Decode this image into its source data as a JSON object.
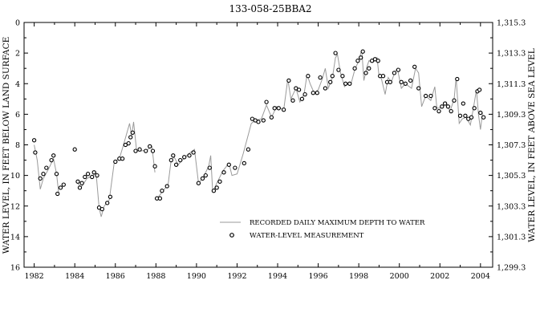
{
  "chart_data": {
    "type": "line",
    "title": "133-058-25BBA2",
    "ylabel": "WATER LEVEL, IN FEET BELOW LAND SURFACE",
    "y2label": "WATER LEVEL, IN FEET ABOVE SEA LEVEL",
    "xlim": [
      1981.5,
      2004.6
    ],
    "ylim": [
      0,
      16
    ],
    "y_inverted": true,
    "y2lim": [
      1315.3,
      1299.3
    ],
    "x_ticks": [
      "1982",
      "1984",
      "1986",
      "1988",
      "1990",
      "1992",
      "1994",
      "1996",
      "1998",
      "2000",
      "2002",
      "2004"
    ],
    "y_ticks": [
      "0",
      "2",
      "4",
      "6",
      "8",
      "10",
      "12",
      "14",
      "16"
    ],
    "y2_ticks": [
      "1,315.3",
      "1,313.3",
      "1,311.3",
      "1,309.3",
      "1,307.3",
      "1,305.3",
      "1,303.3",
      "1,301.3",
      "1,299.3"
    ],
    "grid": false,
    "legend_position": "bottom-center",
    "legend": [
      "RECORDED DAILY MAXIMUM DEPTH TO WATER",
      "WATER-LEVEL MEASUREMENT"
    ],
    "series": [
      {
        "name": "RECORDED DAILY MAXIMUM DEPTH TO WATER",
        "color": "#9a9a9a",
        "segments": [
          [
            [
              1982.0,
              8.0
            ],
            [
              1982.15,
              9.0
            ],
            [
              1982.3,
              10.9
            ],
            [
              1982.45,
              10.2
            ],
            [
              1982.7,
              9.6
            ],
            [
              1982.95,
              8.9
            ],
            [
              1983.1,
              9.9
            ],
            [
              1983.2,
              11.1
            ]
          ],
          [
            [
              1984.1,
              10.4
            ],
            [
              1984.3,
              10.8
            ],
            [
              1984.6,
              10.2
            ],
            [
              1984.9,
              10.0
            ],
            [
              1985.05,
              9.8
            ],
            [
              1985.2,
              12.1
            ],
            [
              1985.3,
              12.7
            ],
            [
              1985.45,
              12.0
            ],
            [
              1985.7,
              11.6
            ],
            [
              1985.95,
              9.1
            ],
            [
              1986.2,
              8.9
            ],
            [
              1986.4,
              8.0
            ],
            [
              1986.7,
              6.6
            ],
            [
              1986.8,
              7.4
            ],
            [
              1986.9,
              6.5
            ],
            [
              1987.05,
              8.4
            ],
            [
              1987.3,
              8.4
            ],
            [
              1987.6,
              8.3
            ],
            [
              1987.8,
              8.1
            ],
            [
              1987.95,
              9.8
            ]
          ],
          [
            [
              1988.0,
              11.6
            ],
            [
              1988.3,
              11.1
            ],
            [
              1988.6,
              10.6
            ],
            [
              1988.75,
              9.0
            ],
            [
              1988.9,
              8.8
            ],
            [
              1989.1,
              9.3
            ],
            [
              1989.3,
              9.0
            ],
            [
              1989.6,
              8.6
            ],
            [
              1989.9,
              8.3
            ],
            [
              1990.1,
              10.5
            ],
            [
              1990.3,
              10.2
            ],
            [
              1990.6,
              9.4
            ],
            [
              1990.7,
              8.7
            ],
            [
              1990.8,
              11.1
            ],
            [
              1991.0,
              10.5
            ],
            [
              1991.3,
              9.7
            ],
            [
              1991.6,
              9.2
            ],
            [
              1991.75,
              10.0
            ],
            [
              1992.0,
              9.9
            ],
            [
              1992.3,
              8.6
            ],
            [
              1992.5,
              7.6
            ],
            [
              1992.7,
              6.6
            ],
            [
              1992.9,
              6.4
            ],
            [
              1993.2,
              6.3
            ],
            [
              1993.45,
              5.4
            ],
            [
              1993.7,
              6.2
            ],
            [
              1993.95,
              5.5
            ],
            [
              1994.3,
              5.7
            ],
            [
              1994.5,
              3.7
            ],
            [
              1994.65,
              5.0
            ],
            [
              1994.9,
              4.3
            ],
            [
              1995.1,
              5.2
            ],
            [
              1995.3,
              4.7
            ],
            [
              1995.45,
              3.4
            ],
            [
              1995.6,
              4.0
            ],
            [
              1995.8,
              4.6
            ],
            [
              1996.0,
              4.4
            ],
            [
              1996.2,
              3.7
            ],
            [
              1996.35,
              3.0
            ],
            [
              1996.5,
              4.3
            ],
            [
              1996.7,
              3.6
            ],
            [
              1996.85,
              2.3
            ],
            [
              1996.95,
              2.1
            ],
            [
              1997.1,
              3.3
            ],
            [
              1997.3,
              4.2
            ],
            [
              1997.45,
              4.0
            ],
            [
              1997.6,
              4.1
            ],
            [
              1997.8,
              3.1
            ],
            [
              1997.9,
              2.8
            ],
            [
              1998.0,
              2.5
            ],
            [
              1998.1,
              2.0
            ],
            [
              1998.15,
              1.8
            ],
            [
              1998.25,
              3.8
            ],
            [
              1998.4,
              2.9
            ],
            [
              1998.5,
              2.5
            ],
            [
              1998.7,
              2.6
            ],
            [
              1998.9,
              2.3
            ],
            [
              1999.0,
              3.5
            ],
            [
              1999.1,
              3.6
            ],
            [
              1999.3,
              4.7
            ],
            [
              1999.45,
              3.6
            ],
            [
              1999.6,
              3.9
            ],
            [
              1999.8,
              3.2
            ],
            [
              1999.9,
              3.0
            ],
            [
              2000.1,
              4.3
            ],
            [
              2000.3,
              4.0
            ],
            [
              2000.5,
              4.2
            ],
            [
              2000.6,
              4.3
            ],
            [
              2000.8,
              3.0
            ],
            [
              2000.95,
              3.3
            ],
            [
              2001.1,
              5.5
            ],
            [
              2001.3,
              4.8
            ],
            [
              2001.55,
              5.1
            ],
            [
              2001.75,
              4.2
            ],
            [
              2001.85,
              5.6
            ],
            [
              2002.1,
              5.6
            ],
            [
              2002.3,
              5.2
            ],
            [
              2002.5,
              5.8
            ],
            [
              2002.7,
              5.0
            ],
            [
              2002.8,
              3.6
            ],
            [
              2002.95,
              6.6
            ],
            [
              2003.1,
              6.3
            ],
            [
              2003.3,
              6.2
            ],
            [
              2003.5,
              6.7
            ],
            [
              2003.65,
              5.6
            ],
            [
              2003.8,
              4.4
            ],
            [
              2003.9,
              6.0
            ],
            [
              2004.0,
              7.0
            ],
            [
              2004.1,
              5.9
            ]
          ]
        ]
      },
      {
        "name": "WATER-LEVEL MEASUREMENT",
        "points": [
          [
            1982.0,
            7.7
          ],
          [
            1982.05,
            8.5
          ],
          [
            1982.3,
            10.2
          ],
          [
            1982.45,
            9.9
          ],
          [
            1982.6,
            9.5
          ],
          [
            1982.85,
            9.0
          ],
          [
            1982.95,
            8.7
          ],
          [
            1983.1,
            9.9
          ],
          [
            1983.15,
            11.2
          ],
          [
            1983.3,
            10.8
          ],
          [
            1983.45,
            10.6
          ],
          [
            1984.0,
            8.3
          ],
          [
            1984.15,
            10.4
          ],
          [
            1984.25,
            10.8
          ],
          [
            1984.35,
            10.5
          ],
          [
            1984.5,
            10.1
          ],
          [
            1984.65,
            9.9
          ],
          [
            1984.85,
            10.1
          ],
          [
            1984.95,
            9.8
          ],
          [
            1985.1,
            10.0
          ],
          [
            1985.2,
            12.1
          ],
          [
            1985.35,
            12.2
          ],
          [
            1985.6,
            11.8
          ],
          [
            1985.75,
            11.4
          ],
          [
            1986.0,
            9.1
          ],
          [
            1986.2,
            8.9
          ],
          [
            1986.35,
            8.9
          ],
          [
            1986.5,
            8.0
          ],
          [
            1986.65,
            7.9
          ],
          [
            1986.75,
            7.5
          ],
          [
            1986.85,
            7.2
          ],
          [
            1987.0,
            8.4
          ],
          [
            1987.2,
            8.3
          ],
          [
            1987.5,
            8.4
          ],
          [
            1987.7,
            8.1
          ],
          [
            1987.85,
            8.4
          ],
          [
            1987.95,
            9.4
          ],
          [
            1988.05,
            11.5
          ],
          [
            1988.2,
            11.5
          ],
          [
            1988.3,
            11.0
          ],
          [
            1988.55,
            10.7
          ],
          [
            1988.75,
            9.0
          ],
          [
            1988.85,
            8.7
          ],
          [
            1989.0,
            9.3
          ],
          [
            1989.2,
            9.0
          ],
          [
            1989.4,
            8.8
          ],
          [
            1989.65,
            8.7
          ],
          [
            1989.85,
            8.5
          ],
          [
            1990.1,
            10.5
          ],
          [
            1990.3,
            10.2
          ],
          [
            1990.45,
            10.0
          ],
          [
            1990.65,
            9.5
          ],
          [
            1990.85,
            11.0
          ],
          [
            1991.0,
            10.8
          ],
          [
            1991.15,
            10.4
          ],
          [
            1991.35,
            9.8
          ],
          [
            1991.6,
            9.3
          ],
          [
            1991.9,
            9.5
          ],
          [
            1992.35,
            9.2
          ],
          [
            1992.55,
            8.3
          ],
          [
            1992.75,
            6.3
          ],
          [
            1992.9,
            6.4
          ],
          [
            1993.05,
            6.5
          ],
          [
            1993.3,
            6.4
          ],
          [
            1993.45,
            5.2
          ],
          [
            1993.7,
            6.2
          ],
          [
            1993.85,
            5.6
          ],
          [
            1994.05,
            5.6
          ],
          [
            1994.3,
            5.7
          ],
          [
            1994.55,
            3.8
          ],
          [
            1994.75,
            5.1
          ],
          [
            1994.9,
            4.3
          ],
          [
            1995.05,
            4.4
          ],
          [
            1995.2,
            5.0
          ],
          [
            1995.35,
            4.7
          ],
          [
            1995.5,
            3.5
          ],
          [
            1995.75,
            4.6
          ],
          [
            1995.95,
            4.6
          ],
          [
            1996.1,
            3.6
          ],
          [
            1996.35,
            4.3
          ],
          [
            1996.6,
            3.9
          ],
          [
            1996.7,
            3.5
          ],
          [
            1996.85,
            2.0
          ],
          [
            1997.0,
            3.1
          ],
          [
            1997.2,
            3.5
          ],
          [
            1997.35,
            4.0
          ],
          [
            1997.55,
            4.0
          ],
          [
            1997.8,
            3.0
          ],
          [
            1997.95,
            2.5
          ],
          [
            1998.1,
            2.3
          ],
          [
            1998.2,
            1.9
          ],
          [
            1998.35,
            3.3
          ],
          [
            1998.5,
            3.0
          ],
          [
            1998.65,
            2.5
          ],
          [
            1998.8,
            2.4
          ],
          [
            1998.95,
            2.5
          ],
          [
            1999.05,
            3.5
          ],
          [
            1999.2,
            3.5
          ],
          [
            1999.4,
            3.9
          ],
          [
            1999.55,
            3.9
          ],
          [
            1999.75,
            3.3
          ],
          [
            1999.95,
            3.1
          ],
          [
            2000.1,
            3.9
          ],
          [
            2000.3,
            4.0
          ],
          [
            2000.55,
            3.8
          ],
          [
            2000.75,
            2.9
          ],
          [
            2000.95,
            4.3
          ],
          [
            2001.3,
            4.8
          ],
          [
            2001.55,
            4.8
          ],
          [
            2001.75,
            5.6
          ],
          [
            2001.95,
            5.8
          ],
          [
            2002.1,
            5.5
          ],
          [
            2002.25,
            5.3
          ],
          [
            2002.4,
            5.5
          ],
          [
            2002.55,
            5.8
          ],
          [
            2002.7,
            5.1
          ],
          [
            2002.85,
            3.7
          ],
          [
            2003.0,
            6.1
          ],
          [
            2003.15,
            5.3
          ],
          [
            2003.25,
            6.1
          ],
          [
            2003.4,
            6.3
          ],
          [
            2003.55,
            6.2
          ],
          [
            2003.7,
            5.6
          ],
          [
            2003.85,
            4.5
          ],
          [
            2003.95,
            4.4
          ],
          [
            2004.0,
            5.9
          ],
          [
            2004.15,
            6.2
          ]
        ]
      }
    ]
  }
}
